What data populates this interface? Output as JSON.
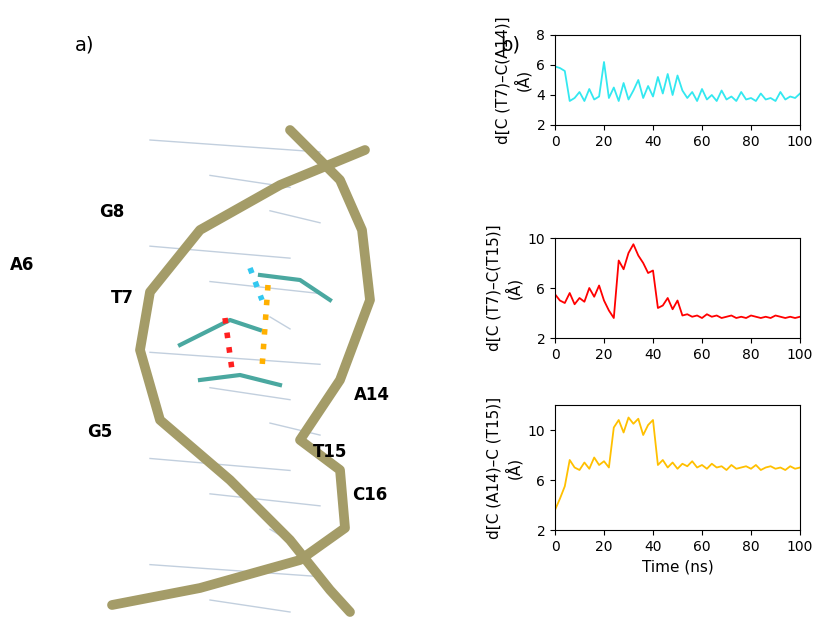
{
  "diagram": {
    "label": "a)",
    "residues": [
      "G8",
      "A6",
      "T7",
      "G5",
      "A14",
      "T15",
      "C16"
    ]
  },
  "panel_b_label": "b)",
  "chart_data": [
    {
      "type": "line",
      "y_label": "d[C (T7)–C(A14)]\n(Å)",
      "x_label": null,
      "x": [
        0,
        2,
        4,
        6,
        8,
        10,
        12,
        14,
        16,
        18,
        20,
        22,
        24,
        26,
        28,
        30,
        32,
        34,
        36,
        38,
        40,
        42,
        44,
        46,
        48,
        50,
        52,
        54,
        56,
        58,
        60,
        62,
        64,
        66,
        68,
        70,
        72,
        74,
        76,
        78,
        80,
        82,
        84,
        86,
        88,
        90,
        92,
        94,
        96,
        98,
        100
      ],
      "values": [
        5.9,
        5.8,
        5.6,
        3.6,
        3.8,
        4.2,
        3.6,
        4.4,
        3.7,
        3.9,
        6.2,
        3.8,
        4.5,
        3.6,
        4.8,
        3.7,
        4.3,
        5.0,
        3.8,
        4.6,
        3.9,
        5.2,
        4.1,
        5.4,
        4.0,
        5.3,
        4.3,
        3.8,
        4.2,
        3.6,
        4.4,
        3.7,
        4.0,
        3.6,
        4.3,
        3.7,
        3.9,
        3.6,
        4.2,
        3.7,
        3.8,
        3.6,
        4.1,
        3.7,
        3.8,
        3.6,
        4.2,
        3.7,
        3.9,
        3.8,
        4.1
      ],
      "color": "#33e8f0",
      "xlim": [
        0,
        100
      ],
      "xticks": [
        0,
        20,
        40,
        60,
        80,
        100
      ],
      "ylim": [
        2,
        8
      ],
      "yticks": [
        2,
        4,
        6,
        8
      ]
    },
    {
      "type": "line",
      "y_label": "d[C (T7)–C(T15)]\n(Å)",
      "x_label": null,
      "x": [
        0,
        2,
        4,
        6,
        8,
        10,
        12,
        14,
        16,
        18,
        20,
        22,
        24,
        26,
        28,
        30,
        32,
        34,
        36,
        38,
        40,
        42,
        44,
        46,
        48,
        50,
        52,
        54,
        56,
        58,
        60,
        62,
        64,
        66,
        68,
        70,
        72,
        74,
        76,
        78,
        80,
        82,
        84,
        86,
        88,
        90,
        92,
        94,
        96,
        98,
        100
      ],
      "values": [
        5.5,
        5.0,
        4.8,
        5.6,
        4.7,
        5.2,
        4.9,
        6.0,
        5.3,
        6.2,
        5.0,
        4.2,
        3.6,
        8.2,
        7.5,
        8.8,
        9.5,
        8.6,
        8.0,
        7.2,
        7.4,
        4.4,
        4.6,
        5.2,
        4.3,
        5.0,
        3.8,
        3.9,
        3.7,
        3.8,
        3.6,
        3.9,
        3.7,
        3.8,
        3.6,
        3.7,
        3.8,
        3.6,
        3.7,
        3.6,
        3.8,
        3.7,
        3.6,
        3.7,
        3.6,
        3.8,
        3.7,
        3.6,
        3.7,
        3.6,
        3.7
      ],
      "color": "#ff0000",
      "xlim": [
        0,
        100
      ],
      "xticks": [
        0,
        20,
        40,
        60,
        80,
        100
      ],
      "ylim": [
        2,
        10
      ],
      "yticks": [
        2,
        6,
        10
      ]
    },
    {
      "type": "line",
      "y_label": "d[C (A14)–C (T15)]\n(Å)",
      "x_label": "Time (ns)",
      "x": [
        0,
        2,
        4,
        6,
        8,
        10,
        12,
        14,
        16,
        18,
        20,
        22,
        24,
        26,
        28,
        30,
        32,
        34,
        36,
        38,
        40,
        42,
        44,
        46,
        48,
        50,
        52,
        54,
        56,
        58,
        60,
        62,
        64,
        66,
        68,
        70,
        72,
        74,
        76,
        78,
        80,
        82,
        84,
        86,
        88,
        90,
        92,
        94,
        96,
        98,
        100
      ],
      "values": [
        3.6,
        4.5,
        5.5,
        7.6,
        7.0,
        6.8,
        7.4,
        6.9,
        7.8,
        7.2,
        7.5,
        7.0,
        10.2,
        10.8,
        9.8,
        11.0,
        10.5,
        10.9,
        9.6,
        10.4,
        10.8,
        7.2,
        7.6,
        7.0,
        7.4,
        6.9,
        7.3,
        7.1,
        7.5,
        7.0,
        7.2,
        6.9,
        7.3,
        7.0,
        7.1,
        6.8,
        7.2,
        6.9,
        7.0,
        7.1,
        6.9,
        7.2,
        6.8,
        7.0,
        7.1,
        6.9,
        7.0,
        6.8,
        7.1,
        6.9,
        7.0
      ],
      "color": "#ffc000",
      "xlim": [
        0,
        100
      ],
      "xticks": [
        0,
        20,
        40,
        60,
        80,
        100
      ],
      "ylim": [
        2,
        12
      ],
      "yticks": [
        2,
        6,
        10
      ]
    }
  ]
}
